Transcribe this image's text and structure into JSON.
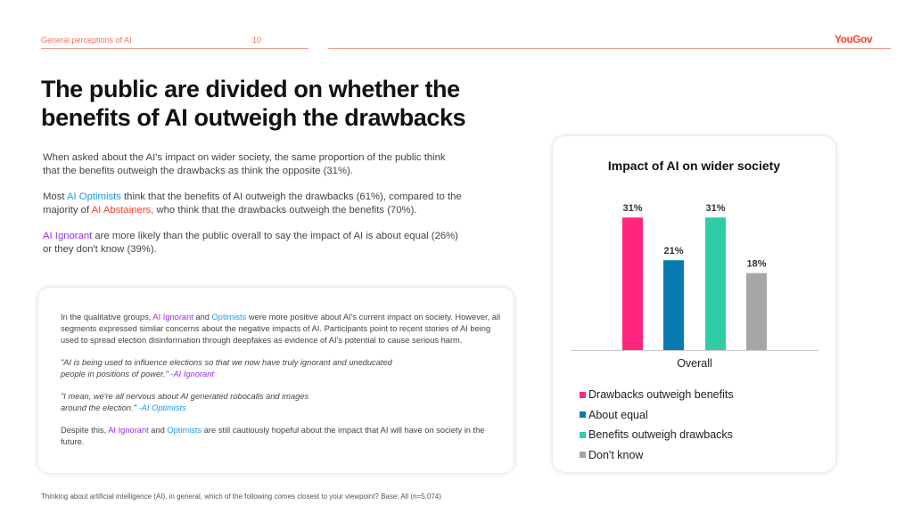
{
  "header": {
    "section": "General perceptions of AI",
    "page": "10",
    "logo": "YouGov"
  },
  "title": "The public are divided on whether the benefits of AI outweigh the drawbacks",
  "body": {
    "p1": "When asked about the AI's impact on wider society, the same proportion of the public think that the benefits outweigh the drawbacks as think the opposite (31%).",
    "p2_a": "Most ",
    "p2_opt": "AI Optimists",
    "p2_b": " think that the benefits of AI outweigh the drawbacks (61%), compared to the majority of ",
    "p2_abs": "AI Abstainers,",
    "p2_c": " who think that the drawbacks outweigh the benefits (70%).",
    "p3_ign": "AI Ignorant",
    "p3_b": " are more likely than the public overall to say the impact of AI is about equal (26%) or they don't know (39%)."
  },
  "quote_box": {
    "p1_a": "In the qualitative groups, ",
    "p1_ign": "AI Ignorant",
    "p1_and": " and ",
    "p1_opt": "Optimists",
    "p1_b": " were more positive about AI's current impact on society. However, all segments expressed similar concerns about the negative impacts of AI. Participants point to recent stories of AI being used to spread election disinformation through deepfakes as evidence of AI's potential to cause serious harm.",
    "q1": "\"AI is being used to influence elections so that we now have truly ignorant and uneducated people in positions of power.\"",
    "q1_src": " -AI Ignorant",
    "q2": "\"I mean, we're all nervous about AI generated robocalls and images around the election.\"",
    "q2_src": "  -AI Optimists",
    "p2_a": "Despite this, ",
    "p2_ign": "AI Ignorant",
    "p2_and": " and ",
    "p2_opt": "Optimists",
    "p2_b": " are still cautiously hopeful about the impact that AI will have on society in the future."
  },
  "footnote": "Thinking about artificial intelligence (AI), in general, which of the following comes closest to your viewpoint? Base: All (n=5,074)",
  "chart_data": {
    "type": "bar",
    "title": "Impact of AI on wider society",
    "categories": [
      "Overall"
    ],
    "xlabel": "",
    "ylabel": "",
    "ylim": [
      0,
      31
    ],
    "grid": false,
    "legend": "bottom",
    "series": [
      {
        "name": "Drawbacks outweigh benefits",
        "values": [
          31
        ],
        "label": "31%",
        "color": "#ff2680"
      },
      {
        "name": "About equal",
        "values": [
          21
        ],
        "label": "21%",
        "color": "#077bb0"
      },
      {
        "name": "Benefits outweigh drawbacks",
        "values": [
          31
        ],
        "label": "31%",
        "color": "#30cca8"
      },
      {
        "name": "Don't know",
        "values": [
          18
        ],
        "label": "18%",
        "color": "#a6a6a6"
      }
    ]
  }
}
